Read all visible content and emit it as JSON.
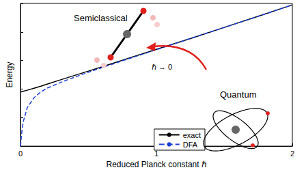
{
  "chart_data": {
    "type": "line",
    "x": [
      0,
      0.01,
      0.02,
      0.05,
      0.1,
      0.15,
      0.2,
      0.3,
      0.4,
      0.5,
      0.75,
      1,
      1.25,
      1.5,
      1.75,
      2
    ],
    "series": [
      {
        "name": "exact",
        "color": "#000000",
        "line_style": "solid",
        "values": [
          1.9,
          1.91,
          1.92,
          1.96,
          2.03,
          2.1,
          2.18,
          2.33,
          2.48,
          2.63,
          3.01,
          3.39,
          3.77,
          4.16,
          4.55,
          4.95
        ]
      },
      {
        "name": "DFA",
        "color": "#1a3fd6",
        "line_style": "dashed",
        "values": [
          0,
          0.5,
          0.85,
          1.35,
          1.7,
          1.9,
          2.04,
          2.24,
          2.42,
          2.59,
          2.99,
          3.38,
          3.77,
          4.16,
          4.55,
          4.95
        ]
      }
    ],
    "xlim": [
      0,
      2
    ],
    "xticks": [
      0,
      1,
      2
    ],
    "ylim": [
      0,
      5
    ],
    "yticks": [
      0,
      1,
      2,
      3,
      4,
      5
    ],
    "tick_labels": "x",
    "xlabel": "Reduced Planck constant ℏ",
    "ylabel": "Energy",
    "legend": "lower right",
    "grid": false,
    "annotations": [
      "Semiclassical",
      "Quantum",
      "ℏ → 0"
    ]
  }
}
